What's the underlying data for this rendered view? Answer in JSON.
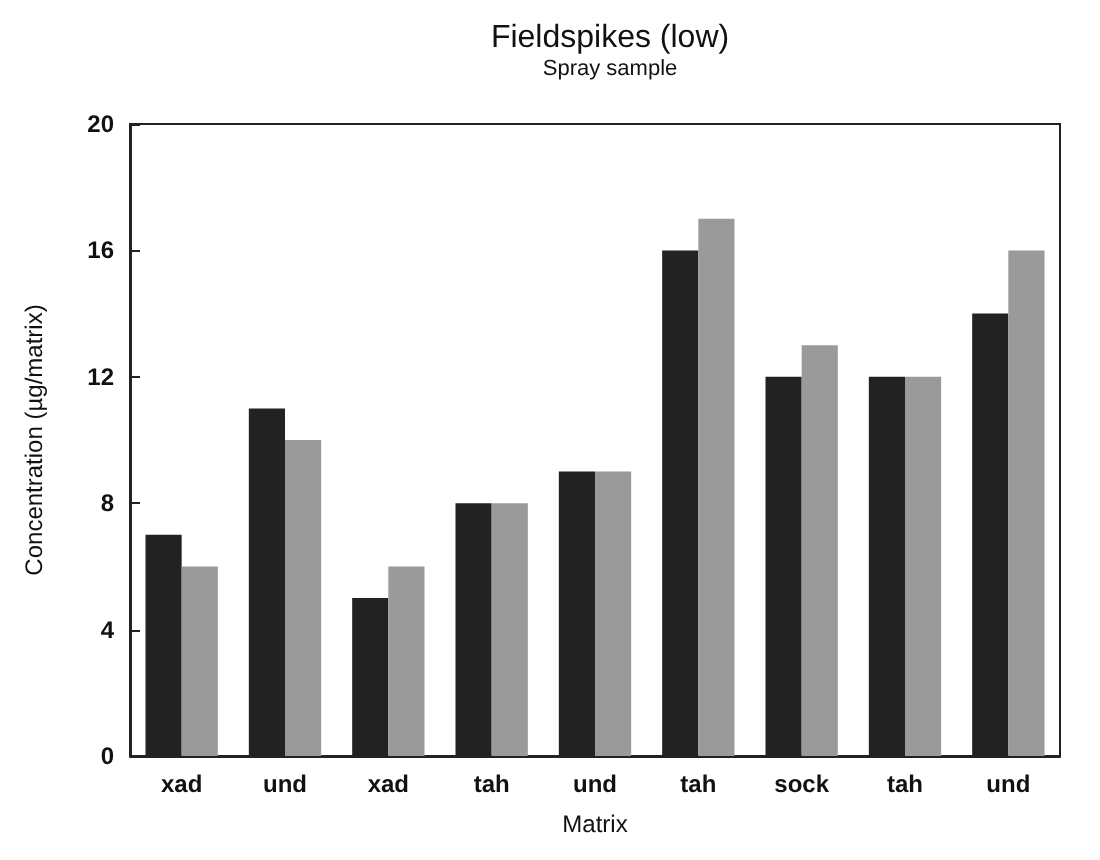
{
  "chart_data": {
    "type": "bar",
    "title": "Fieldspikes (low)",
    "subtitle": "Spray sample",
    "xlabel": "Matrix",
    "ylabel": "Concentration (µg/matrix)",
    "categories": [
      "xad",
      "und",
      "xad",
      "tah",
      "und",
      "tah",
      "sock",
      "tah",
      "und"
    ],
    "series": [
      {
        "color": "#222222",
        "values": [
          7,
          11,
          5,
          8,
          9,
          16,
          12,
          12,
          14
        ]
      },
      {
        "color": "#9a9a9a",
        "values": [
          6,
          10,
          6,
          8,
          9,
          17,
          13,
          12,
          16
        ]
      }
    ],
    "ylim": [
      0,
      20
    ],
    "yticks": [
      0,
      4,
      8,
      12,
      16,
      20
    ],
    "grid": false
  }
}
